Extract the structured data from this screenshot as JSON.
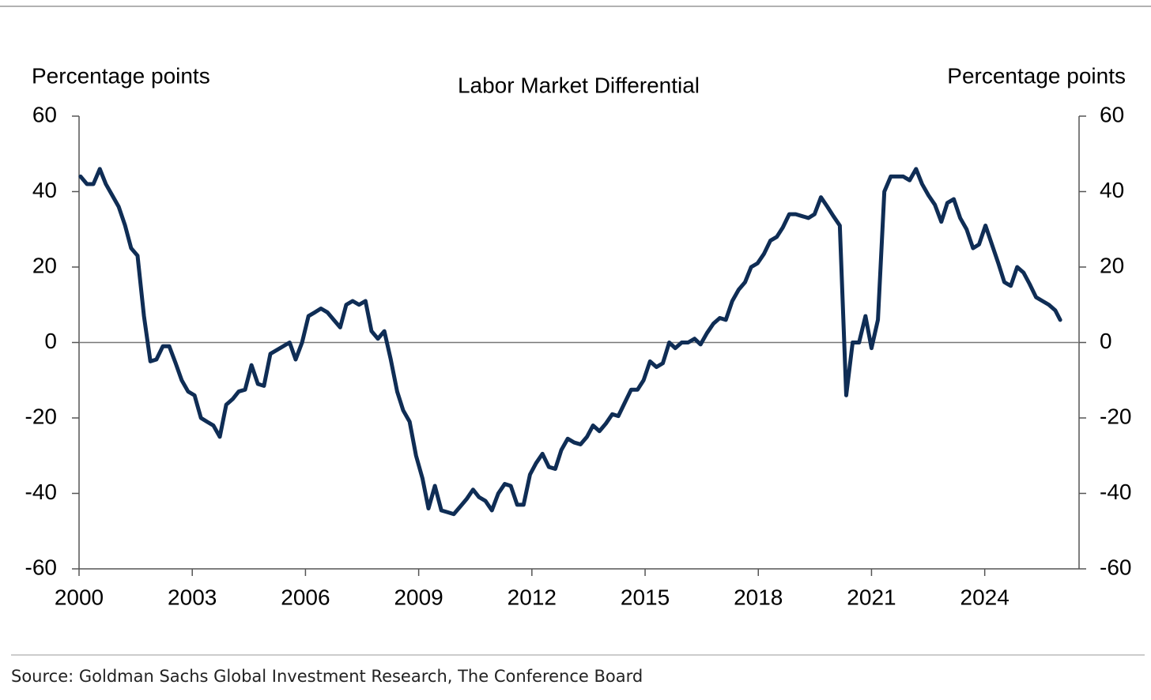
{
  "chart_data": {
    "type": "line",
    "title": "Labor Market Differential",
    "y_axis_label": "Percentage points",
    "y2_axis_label": "Percentage points",
    "source": "Source: Goldman Sachs Global Investment Research, The Conference Board",
    "xlim": [
      2000,
      2026.5
    ],
    "xticks": [
      2000,
      2003,
      2006,
      2009,
      2012,
      2015,
      2018,
      2021,
      2024
    ],
    "ylim": [
      -60,
      60
    ],
    "yticks": [
      -60,
      -40,
      -20,
      0,
      20,
      40,
      60
    ],
    "y2lim": [
      -60,
      60
    ],
    "y2ticks": [
      -60,
      -40,
      -20,
      0,
      20,
      40,
      60
    ],
    "series": [
      {
        "name": "Labor Market Differential",
        "color": "#0f2d55",
        "x": [
          2000.04,
          2000.21,
          2000.38,
          2000.55,
          2000.71,
          2000.88,
          2001.05,
          2001.22,
          2001.38,
          2001.55,
          2001.72,
          2001.89,
          2002.05,
          2002.22,
          2002.39,
          2002.56,
          2002.72,
          2002.89,
          2003.06,
          2003.23,
          2003.39,
          2003.56,
          2003.73,
          2003.9,
          2004.07,
          2004.23,
          2004.4,
          2004.57,
          2004.74,
          2004.9,
          2005.07,
          2005.24,
          2005.41,
          2005.58,
          2005.74,
          2005.91,
          2006.08,
          2006.25,
          2006.41,
          2006.58,
          2006.75,
          2006.92,
          2007.08,
          2007.25,
          2007.42,
          2007.59,
          2007.75,
          2007.92,
          2008.09,
          2008.26,
          2008.43,
          2008.59,
          2008.76,
          2008.93,
          2009.1,
          2009.26,
          2009.43,
          2009.6,
          2009.77,
          2009.93,
          2010.1,
          2010.27,
          2010.44,
          2010.6,
          2010.77,
          2010.94,
          2011.11,
          2011.28,
          2011.44,
          2011.61,
          2011.78,
          2011.95,
          2012.11,
          2012.28,
          2012.45,
          2012.62,
          2012.78,
          2012.95,
          2013.12,
          2013.29,
          2013.46,
          2013.62,
          2013.79,
          2013.96,
          2014.13,
          2014.29,
          2014.46,
          2014.63,
          2014.8,
          2014.96,
          2015.13,
          2015.3,
          2015.47,
          2015.64,
          2015.8,
          2015.97,
          2016.14,
          2016.31,
          2016.47,
          2016.64,
          2016.81,
          2016.98,
          2017.14,
          2017.31,
          2017.48,
          2017.65,
          2017.81,
          2017.98,
          2018.15,
          2018.32,
          2018.49,
          2018.65,
          2018.82,
          2018.99,
          2019.16,
          2019.33,
          2019.49,
          2019.66,
          2019.83,
          2019.99,
          2020.16,
          2020.33,
          2020.5,
          2020.67,
          2020.84,
          2021.0,
          2021.17,
          2021.34,
          2021.51,
          2021.67,
          2021.84,
          2022.01,
          2022.18,
          2022.34,
          2022.51,
          2022.68,
          2022.85,
          2023.01,
          2023.18,
          2023.35,
          2023.52,
          2023.69,
          2023.85,
          2024.02,
          2024.19,
          2024.36,
          2024.52,
          2024.69,
          2024.86,
          2025.03,
          2025.19,
          2025.36,
          2025.53,
          2025.7,
          2025.87,
          2026.0
        ],
        "values": [
          44,
          42,
          42,
          46,
          42,
          39,
          36,
          31,
          25,
          23,
          7,
          -5,
          -4.5,
          -1,
          -1,
          -5.5,
          -10,
          -13,
          -14,
          -20,
          -21,
          -22,
          -25,
          -16.5,
          -15,
          -13,
          -12.5,
          -6,
          -11,
          -11.5,
          -3,
          -2,
          -1,
          0,
          -4.5,
          0,
          7,
          8,
          9,
          8,
          6,
          4,
          10,
          11,
          10,
          11,
          3,
          1,
          3,
          -4.5,
          -13,
          -18,
          -21,
          -30,
          -36,
          -44,
          -38,
          -44.5,
          -45,
          -45.5,
          -43.5,
          -41.5,
          -39,
          -41,
          -42,
          -44.5,
          -40,
          -37.5,
          -38,
          -43,
          -43,
          -35,
          -32,
          -29.5,
          -33,
          -33.5,
          -28.5,
          -25.5,
          -26.5,
          -27,
          -25,
          -22,
          -23.5,
          -21.5,
          -19,
          -19.5,
          -16,
          -12.5,
          -12.5,
          -10,
          -5,
          -6.5,
          -5.5,
          0,
          -1.5,
          0,
          0,
          1,
          -0.5,
          2.5,
          5,
          6.5,
          6,
          11,
          14,
          16,
          20,
          21,
          23.5,
          27,
          28,
          30.5,
          34,
          34,
          33.5,
          33,
          34,
          38.5,
          36,
          33.5,
          31,
          -14,
          0,
          0,
          7,
          -1.5,
          6,
          40,
          44,
          44,
          44,
          43,
          46,
          42,
          39,
          36.5,
          32,
          37,
          38,
          33,
          30,
          25,
          26,
          31,
          26,
          21,
          16,
          15,
          20,
          18.5,
          15.5,
          12,
          11,
          10,
          8.5,
          6
        ]
      }
    ]
  }
}
